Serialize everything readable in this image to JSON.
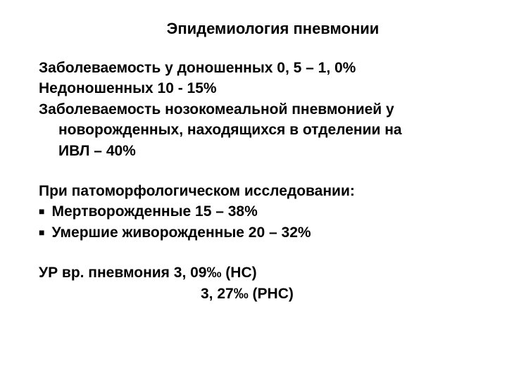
{
  "title": "Эпидемиология пневмонии",
  "block1": {
    "line1": "Заболеваемость у доношенных 0, 5 – 1, 0%",
    "line2": "Недоношенных 10 - 15%",
    "line3": "Заболеваемость нозокомеальной пневмонией у",
    "line4": "новорожденных, находящихся в отделении на",
    "line5": "ИВЛ – 40%"
  },
  "block2": {
    "heading": "При патоморфологическом исследовании:",
    "bullet1": "Мертворожденные 15 – 38%",
    "bullet2": "Умершие живорожденные 20 – 32%"
  },
  "block3": {
    "line1": "УР вр. пневмония 3, 09‰ (НС)",
    "line2": "3, 27‰ (РНС)"
  },
  "styling": {
    "background_color": "#ffffff",
    "text_color": "#000000",
    "title_fontsize": 22,
    "body_fontsize": 21,
    "font_weight": "bold",
    "bullet_char": "■"
  }
}
